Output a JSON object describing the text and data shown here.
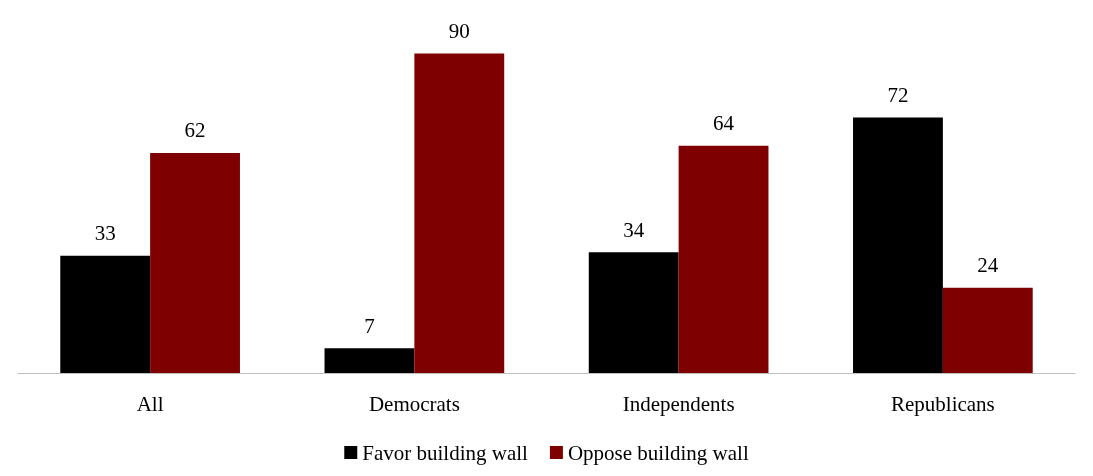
{
  "chart_data": {
    "type": "bar",
    "categories": [
      "All",
      "Democrats",
      "Independents",
      "Republicans"
    ],
    "series": [
      {
        "name": "Favor building wall",
        "color": "#000000",
        "values": [
          33,
          7,
          34,
          72
        ]
      },
      {
        "name": "Oppose building wall",
        "color": "#7f0000",
        "values": [
          62,
          90,
          64,
          24
        ]
      }
    ],
    "data_labels": true,
    "legend": "bottom"
  }
}
